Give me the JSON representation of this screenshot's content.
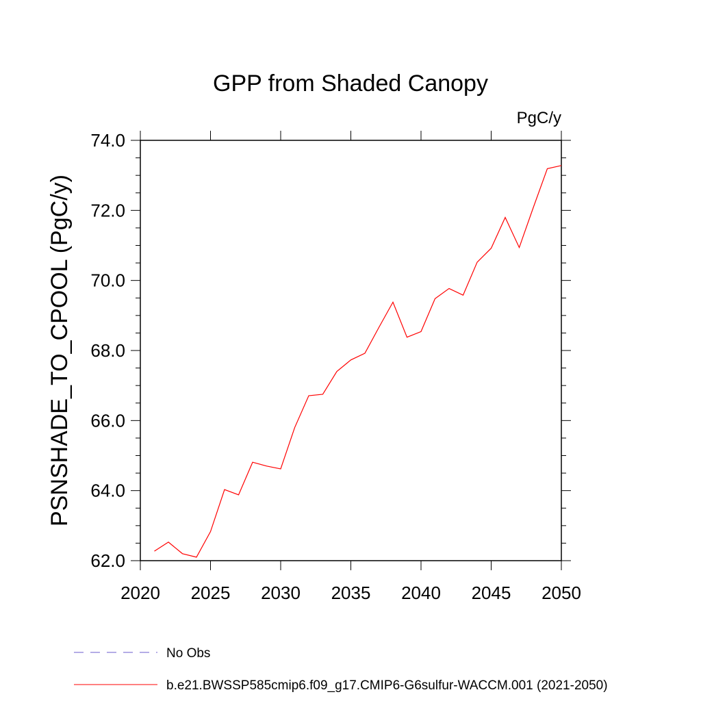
{
  "chart_data": {
    "type": "line",
    "title": "GPP from Shaded Canopy",
    "units": "PgC/y",
    "ylabel": "PSNSHADE_TO_CPOOL  (PgC/y)",
    "xlabel": "",
    "xlim": [
      2020,
      2050
    ],
    "ylim": [
      62.0,
      74.0
    ],
    "x_ticks": [
      2020,
      2025,
      2030,
      2035,
      2040,
      2045,
      2050
    ],
    "x_tick_labels": [
      "2020",
      "2025",
      "2030",
      "2035",
      "2040",
      "2045",
      "2050"
    ],
    "y_ticks": [
      62,
      64,
      66,
      68,
      70,
      72,
      74
    ],
    "y_tick_labels": [
      "62.0",
      "64.0",
      "66.0",
      "68.0",
      "70.0",
      "72.0",
      "74.0"
    ],
    "grid": false,
    "legend_position": "bottom",
    "series": [
      {
        "name": "b.e21.BWSSP585cmip6.f09_g17.CMIP6-G6sulfur-WACCM.001 (2021-2050)",
        "color": "#ff0000",
        "style": "solid",
        "x": [
          2021,
          2022,
          2023,
          2024,
          2025,
          2026,
          2027,
          2028,
          2029,
          2030,
          2031,
          2032,
          2033,
          2034,
          2035,
          2036,
          2037,
          2038,
          2039,
          2040,
          2041,
          2042,
          2043,
          2044,
          2045,
          2046,
          2047,
          2048,
          2049,
          2050
        ],
        "y": [
          62.27,
          62.53,
          62.2,
          62.1,
          62.83,
          64.03,
          63.88,
          64.81,
          64.7,
          64.62,
          65.8,
          66.71,
          66.75,
          67.4,
          67.73,
          67.92,
          68.66,
          69.38,
          68.38,
          68.54,
          69.48,
          69.77,
          69.58,
          70.52,
          70.92,
          71.8,
          70.94,
          72.08,
          73.19,
          73.28
        ]
      }
    ],
    "legend": [
      {
        "label": "No Obs",
        "color": "#6a5acd",
        "style": "dashed"
      },
      {
        "label": "b.e21.BWSSP585cmip6.f09_g17.CMIP6-G6sulfur-WACCM.001 (2021-2050)",
        "color": "#ff0000",
        "style": "solid"
      }
    ]
  }
}
